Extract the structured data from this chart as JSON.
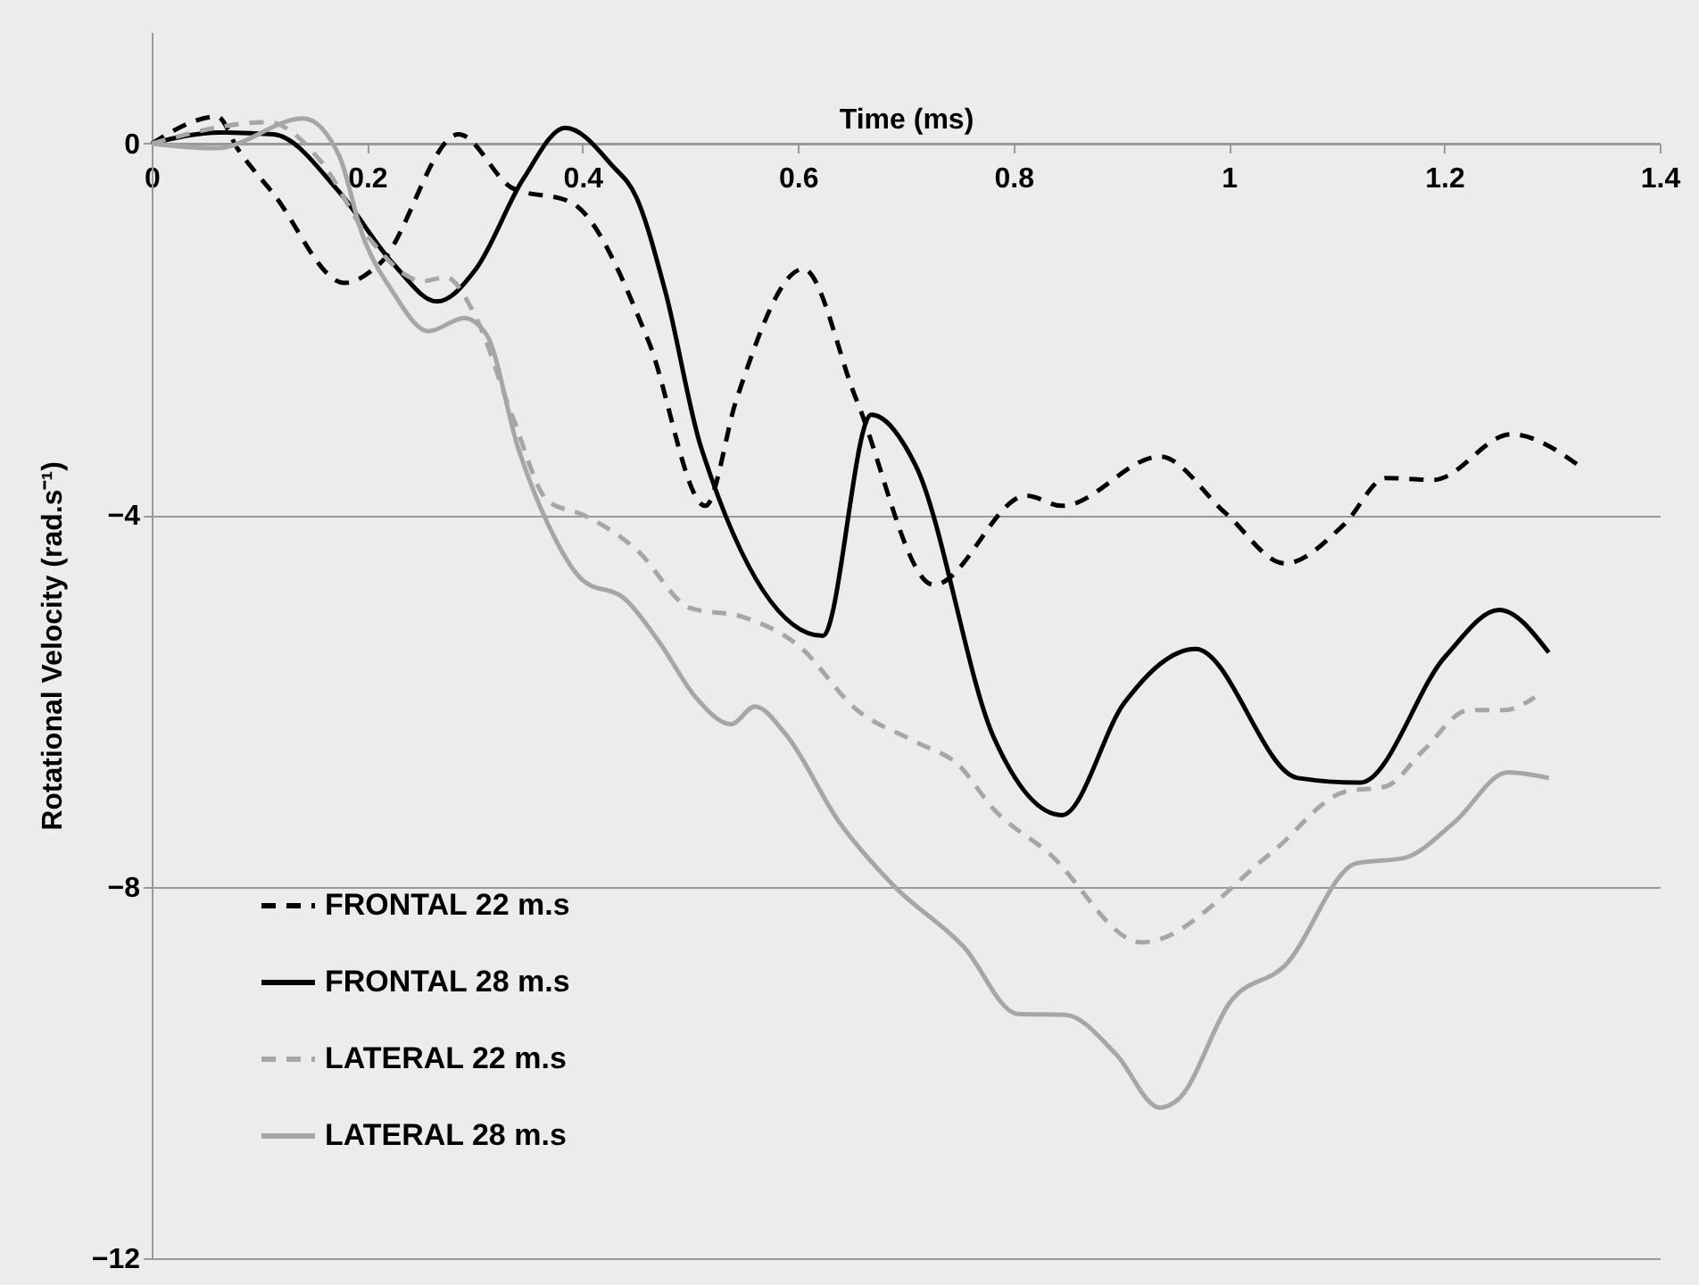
{
  "chart_data": {
    "type": "line",
    "xlabel": "Time (ms)",
    "ylabel": "Rotational Velocity (rad.s⁻¹)",
    "xlim": [
      0,
      1.4
    ],
    "xticks": [
      0,
      0.2,
      0.4,
      0.6,
      0.8,
      1,
      1.2,
      1.4
    ],
    "ylim": [
      -12,
      1.2
    ],
    "yticks": [
      -12,
      -8,
      -4,
      0
    ],
    "grid": "y",
    "legend": "bottom left",
    "marker": "none",
    "series": [
      {
        "name": "FRONTAL 22 m.s",
        "color": "#000000",
        "line_style": "dashed",
        "x": [
          0,
          0.061,
          0.08,
          0.113,
          0.179,
          0.212,
          0.285,
          0.335,
          0.389,
          0.461,
          0.514,
          0.543,
          0.605,
          0.654,
          0.726,
          0.812,
          0.845,
          0.936,
          0.997,
          1.052,
          1.107,
          1.146,
          1.19,
          1.262,
          1.329
        ],
        "values": [
          0,
          0.29,
          -0.06,
          -0.54,
          -1.5,
          -1.29,
          0.1,
          -0.48,
          -0.63,
          -2.12,
          -3.9,
          -2.75,
          -1.35,
          -2.75,
          -4.75,
          -3.79,
          -3.9,
          -3.37,
          -3.98,
          -4.52,
          -4.1,
          -3.6,
          -3.62,
          -3.13,
          -3.5
        ]
      },
      {
        "name": "FRONTAL 28 m.s",
        "color": "#000000",
        "line_style": "solid",
        "x": [
          0,
          0.063,
          0.113,
          0.174,
          0.224,
          0.265,
          0.301,
          0.345,
          0.384,
          0.427,
          0.45,
          0.477,
          0.51,
          0.623,
          0.668,
          0.709,
          0.782,
          0.845,
          0.903,
          0.969,
          1.064,
          1.122,
          1.201,
          1.251,
          1.297
        ],
        "values": [
          0,
          0.12,
          0.1,
          -0.52,
          -1.29,
          -1.7,
          -1.35,
          -0.38,
          0.17,
          -0.23,
          -0.58,
          -1.6,
          -3.27,
          -5.3,
          -2.92,
          -3.46,
          -6.4,
          -7.23,
          -6.02,
          -5.44,
          -6.83,
          -6.88,
          -5.52,
          -5.02,
          -5.48
        ]
      },
      {
        "name": "LATERAL 22 m.s",
        "color": "#a6a6a6",
        "line_style": "dashed",
        "x": [
          0,
          0.108,
          0.157,
          0.202,
          0.252,
          0.273,
          0.301,
          0.335,
          0.368,
          0.401,
          0.45,
          0.5,
          0.55,
          0.6,
          0.654,
          0.709,
          0.749,
          0.782,
          0.832,
          0.919,
          1.04,
          1.107,
          1.146,
          1.18,
          1.223,
          1.256,
          1.284
        ],
        "values": [
          0,
          0.23,
          -0.19,
          -1.02,
          -1.48,
          -1.44,
          -1.87,
          -2.94,
          -3.85,
          -4.0,
          -4.37,
          -5.0,
          -5.1,
          -5.4,
          -6.09,
          -6.44,
          -6.69,
          -7.17,
          -7.63,
          -8.6,
          -7.63,
          -6.98,
          -6.92,
          -6.54,
          -6.1,
          -6.1,
          -5.96
        ]
      },
      {
        "name": "LATERAL 28 m.s",
        "color": "#a6a6a6",
        "line_style": "solid",
        "x": [
          0,
          0.06,
          0.141,
          0.174,
          0.195,
          0.224,
          0.257,
          0.29,
          0.311,
          0.34,
          0.368,
          0.4,
          0.439,
          0.472,
          0.505,
          0.538,
          0.56,
          0.588,
          0.638,
          0.688,
          0.754,
          0.804,
          0.848,
          0.895,
          0.936,
          0.953,
          1.002,
          1.052,
          1.118,
          1.163,
          1.209,
          1.259,
          1.297
        ],
        "values": [
          0,
          -0.05,
          0.27,
          -0.13,
          -0.96,
          -1.6,
          -2.02,
          -1.88,
          -2.06,
          -3.27,
          -4.1,
          -4.7,
          -4.9,
          -5.38,
          -5.96,
          -6.25,
          -6.06,
          -6.35,
          -7.3,
          -7.98,
          -8.65,
          -9.37,
          -9.38,
          -9.8,
          -10.38,
          -10.29,
          -9.23,
          -8.85,
          -7.75,
          -7.69,
          -7.31,
          -6.77,
          -6.83
        ]
      }
    ]
  }
}
